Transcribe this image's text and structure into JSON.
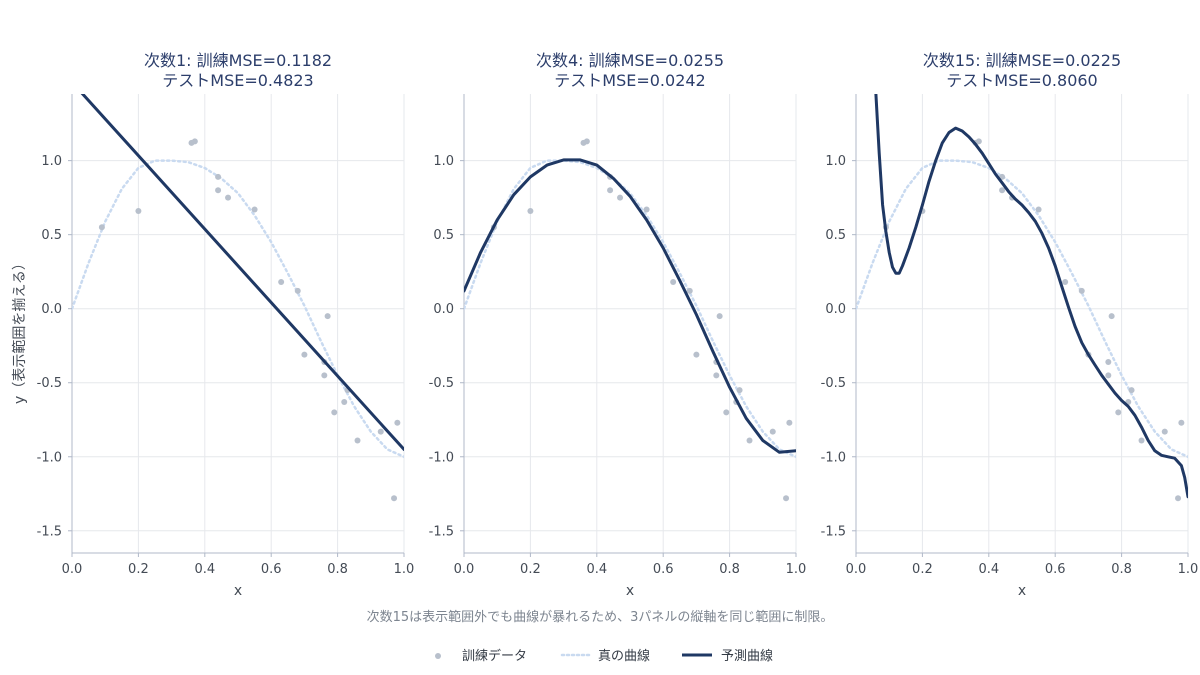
{
  "chart_data": {
    "type": "scatter",
    "shared_ylabel": "y（表示範囲を揃える）",
    "note": "次数15は表示範囲外でも曲線が暴れるため、3パネルの縦軸を同じ範囲に制限。",
    "xlim": [
      0,
      1
    ],
    "ylim": [
      -1.65,
      1.45
    ],
    "x_ticks": [
      "0.0",
      "0.2",
      "0.4",
      "0.6",
      "0.8",
      "1.0"
    ],
    "y_ticks": [
      "1.0",
      "0.5",
      "0.0",
      "-0.5",
      "-1.0",
      "-1.5"
    ],
    "grid": true,
    "legend_position": "bottom-center",
    "legend": {
      "train": "訓練データ",
      "true": "真の曲線",
      "pred": "予測曲線"
    },
    "colors": {
      "train": "#b8c0cc",
      "true": "#c9daf0",
      "pred": "#1f3864",
      "grid": "#e6e8ec",
      "axis": "#b0b8c8"
    },
    "train_points": [
      {
        "x": 0.09,
        "y": 0.55
      },
      {
        "x": 0.2,
        "y": 0.66
      },
      {
        "x": 0.36,
        "y": 1.12
      },
      {
        "x": 0.37,
        "y": 1.13
      },
      {
        "x": 0.44,
        "y": 0.89
      },
      {
        "x": 0.44,
        "y": 0.8
      },
      {
        "x": 0.47,
        "y": 0.75
      },
      {
        "x": 0.55,
        "y": 0.67
      },
      {
        "x": 0.63,
        "y": 0.18
      },
      {
        "x": 0.68,
        "y": 0.12
      },
      {
        "x": 0.7,
        "y": -0.31
      },
      {
        "x": 0.76,
        "y": -0.36
      },
      {
        "x": 0.76,
        "y": -0.45
      },
      {
        "x": 0.77,
        "y": -0.05
      },
      {
        "x": 0.79,
        "y": -0.7
      },
      {
        "x": 0.82,
        "y": -0.63
      },
      {
        "x": 0.83,
        "y": -0.55
      },
      {
        "x": 0.86,
        "y": -0.89
      },
      {
        "x": 0.93,
        "y": -0.83
      },
      {
        "x": 0.97,
        "y": -1.28
      },
      {
        "x": 0.98,
        "y": -0.77
      }
    ],
    "true_curve": [
      {
        "x": 0.0,
        "y": 0.0
      },
      {
        "x": 0.05,
        "y": 0.309
      },
      {
        "x": 0.1,
        "y": 0.588
      },
      {
        "x": 0.15,
        "y": 0.809
      },
      {
        "x": 0.2,
        "y": 0.951
      },
      {
        "x": 0.25,
        "y": 1.0
      },
      {
        "x": 0.3,
        "y": 1.0
      },
      {
        "x": 0.35,
        "y": 0.99
      },
      {
        "x": 0.4,
        "y": 0.95
      },
      {
        "x": 0.45,
        "y": 0.88
      },
      {
        "x": 0.5,
        "y": 0.78
      },
      {
        "x": 0.55,
        "y": 0.63
      },
      {
        "x": 0.6,
        "y": 0.45
      },
      {
        "x": 0.65,
        "y": 0.24
      },
      {
        "x": 0.7,
        "y": 0.02
      },
      {
        "x": 0.75,
        "y": -0.22
      },
      {
        "x": 0.8,
        "y": -0.45
      },
      {
        "x": 0.85,
        "y": -0.66
      },
      {
        "x": 0.9,
        "y": -0.83
      },
      {
        "x": 0.95,
        "y": -0.95
      },
      {
        "x": 1.0,
        "y": -1.0
      }
    ],
    "panels": [
      {
        "title_line1": "次数1: 訓練MSE=0.1182",
        "title_line2": "テストMSE=0.4823",
        "degree": 1,
        "train_mse": 0.1182,
        "test_mse": 0.4823,
        "ylabel": "y（表示範囲を揃える）",
        "xlabel": "x",
        "prediction": [
          {
            "x": 0.0,
            "y": 1.53
          },
          {
            "x": 1.0,
            "y": -0.95
          }
        ]
      },
      {
        "title_line1": "次数4: 訓練MSE=0.0255",
        "title_line2": "テストMSE=0.0242",
        "degree": 4,
        "train_mse": 0.0255,
        "test_mse": 0.0242,
        "ylabel": "",
        "xlabel": "x",
        "prediction": [
          {
            "x": 0.0,
            "y": 0.12
          },
          {
            "x": 0.05,
            "y": 0.38
          },
          {
            "x": 0.1,
            "y": 0.6
          },
          {
            "x": 0.15,
            "y": 0.77
          },
          {
            "x": 0.2,
            "y": 0.89
          },
          {
            "x": 0.25,
            "y": 0.97
          },
          {
            "x": 0.3,
            "y": 1.005
          },
          {
            "x": 0.35,
            "y": 1.005
          },
          {
            "x": 0.4,
            "y": 0.97
          },
          {
            "x": 0.45,
            "y": 0.88
          },
          {
            "x": 0.5,
            "y": 0.76
          },
          {
            "x": 0.55,
            "y": 0.6
          },
          {
            "x": 0.6,
            "y": 0.41
          },
          {
            "x": 0.65,
            "y": 0.19
          },
          {
            "x": 0.7,
            "y": -0.04
          },
          {
            "x": 0.75,
            "y": -0.29
          },
          {
            "x": 0.8,
            "y": -0.53
          },
          {
            "x": 0.85,
            "y": -0.74
          },
          {
            "x": 0.9,
            "y": -0.89
          },
          {
            "x": 0.95,
            "y": -0.97
          },
          {
            "x": 1.0,
            "y": -0.96
          }
        ]
      },
      {
        "title_line1": "次数15: 訓練MSE=0.0225",
        "title_line2": "テストMSE=0.8060",
        "degree": 15,
        "train_mse": 0.0225,
        "test_mse": 0.806,
        "ylabel": "",
        "xlabel": "x",
        "prediction": [
          {
            "x": 0.06,
            "y": 1.45
          },
          {
            "x": 0.07,
            "y": 1.05
          },
          {
            "x": 0.08,
            "y": 0.7
          },
          {
            "x": 0.09,
            "y": 0.52
          },
          {
            "x": 0.1,
            "y": 0.38
          },
          {
            "x": 0.11,
            "y": 0.28
          },
          {
            "x": 0.12,
            "y": 0.24
          },
          {
            "x": 0.13,
            "y": 0.24
          },
          {
            "x": 0.14,
            "y": 0.29
          },
          {
            "x": 0.16,
            "y": 0.41
          },
          {
            "x": 0.18,
            "y": 0.55
          },
          {
            "x": 0.2,
            "y": 0.7
          },
          {
            "x": 0.22,
            "y": 0.86
          },
          {
            "x": 0.24,
            "y": 1.0
          },
          {
            "x": 0.26,
            "y": 1.12
          },
          {
            "x": 0.28,
            "y": 1.19
          },
          {
            "x": 0.3,
            "y": 1.22
          },
          {
            "x": 0.32,
            "y": 1.2
          },
          {
            "x": 0.34,
            "y": 1.16
          },
          {
            "x": 0.36,
            "y": 1.11
          },
          {
            "x": 0.38,
            "y": 1.05
          },
          {
            "x": 0.4,
            "y": 0.98
          },
          {
            "x": 0.42,
            "y": 0.91
          },
          {
            "x": 0.44,
            "y": 0.85
          },
          {
            "x": 0.46,
            "y": 0.79
          },
          {
            "x": 0.48,
            "y": 0.74
          },
          {
            "x": 0.5,
            "y": 0.7
          },
          {
            "x": 0.52,
            "y": 0.65
          },
          {
            "x": 0.54,
            "y": 0.59
          },
          {
            "x": 0.56,
            "y": 0.51
          },
          {
            "x": 0.58,
            "y": 0.41
          },
          {
            "x": 0.6,
            "y": 0.29
          },
          {
            "x": 0.62,
            "y": 0.15
          },
          {
            "x": 0.64,
            "y": 0.01
          },
          {
            "x": 0.66,
            "y": -0.12
          },
          {
            "x": 0.68,
            "y": -0.23
          },
          {
            "x": 0.7,
            "y": -0.31
          },
          {
            "x": 0.72,
            "y": -0.38
          },
          {
            "x": 0.74,
            "y": -0.45
          },
          {
            "x": 0.76,
            "y": -0.51
          },
          {
            "x": 0.78,
            "y": -0.57
          },
          {
            "x": 0.8,
            "y": -0.62
          },
          {
            "x": 0.82,
            "y": -0.66
          },
          {
            "x": 0.84,
            "y": -0.72
          },
          {
            "x": 0.86,
            "y": -0.8
          },
          {
            "x": 0.88,
            "y": -0.89
          },
          {
            "x": 0.9,
            "y": -0.96
          },
          {
            "x": 0.92,
            "y": -0.99
          },
          {
            "x": 0.94,
            "y": -1.0
          },
          {
            "x": 0.96,
            "y": -1.01
          },
          {
            "x": 0.98,
            "y": -1.06
          },
          {
            "x": 0.99,
            "y": -1.14
          },
          {
            "x": 1.0,
            "y": -1.27
          }
        ]
      }
    ]
  }
}
